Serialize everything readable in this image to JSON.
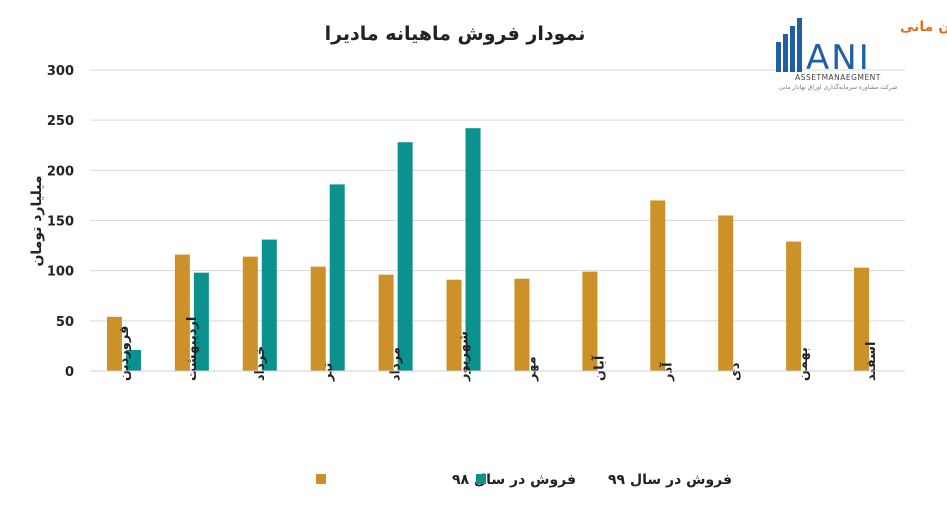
{
  "chart_data": {
    "type": "bar",
    "title": "نمودار فروش ماهیانه  مادیرا",
    "ylabel": "میلیارد تومان",
    "xlabel": "",
    "ylim": [
      0,
      300
    ],
    "yticks": [
      0,
      50,
      100,
      150,
      200,
      250,
      300
    ],
    "grid": true,
    "legend_position": "bottom",
    "categories": [
      "فروردین",
      "اردیبهشت",
      "خرداد",
      "تیر",
      "مرداد",
      "شهریور",
      "مهر",
      "آبان",
      "آذر",
      "دی",
      "بهمن",
      "اسفند"
    ],
    "series": [
      {
        "name": "فروش در سال ۹۸",
        "color": "#CC9129",
        "values": [
          54,
          116,
          114,
          104,
          96,
          91,
          92,
          99,
          170,
          155,
          129,
          103
        ]
      },
      {
        "name": "فروش در سال ۹۹",
        "color": "#0B918E",
        "values": [
          21,
          98,
          131,
          186,
          228,
          242,
          null,
          null,
          null,
          null,
          null,
          null
        ]
      }
    ]
  },
  "logo": {
    "persian_text": "سبدگردان مانی",
    "wordmark": "ANI",
    "subtitle": "ASSETMANAEGMENT",
    "tagline": "شرکت مشاوره سرمایه‌گذاری اوراق بهادار مانی",
    "color_primary": "#1E5FA8",
    "color_accent": "#E0701F"
  }
}
